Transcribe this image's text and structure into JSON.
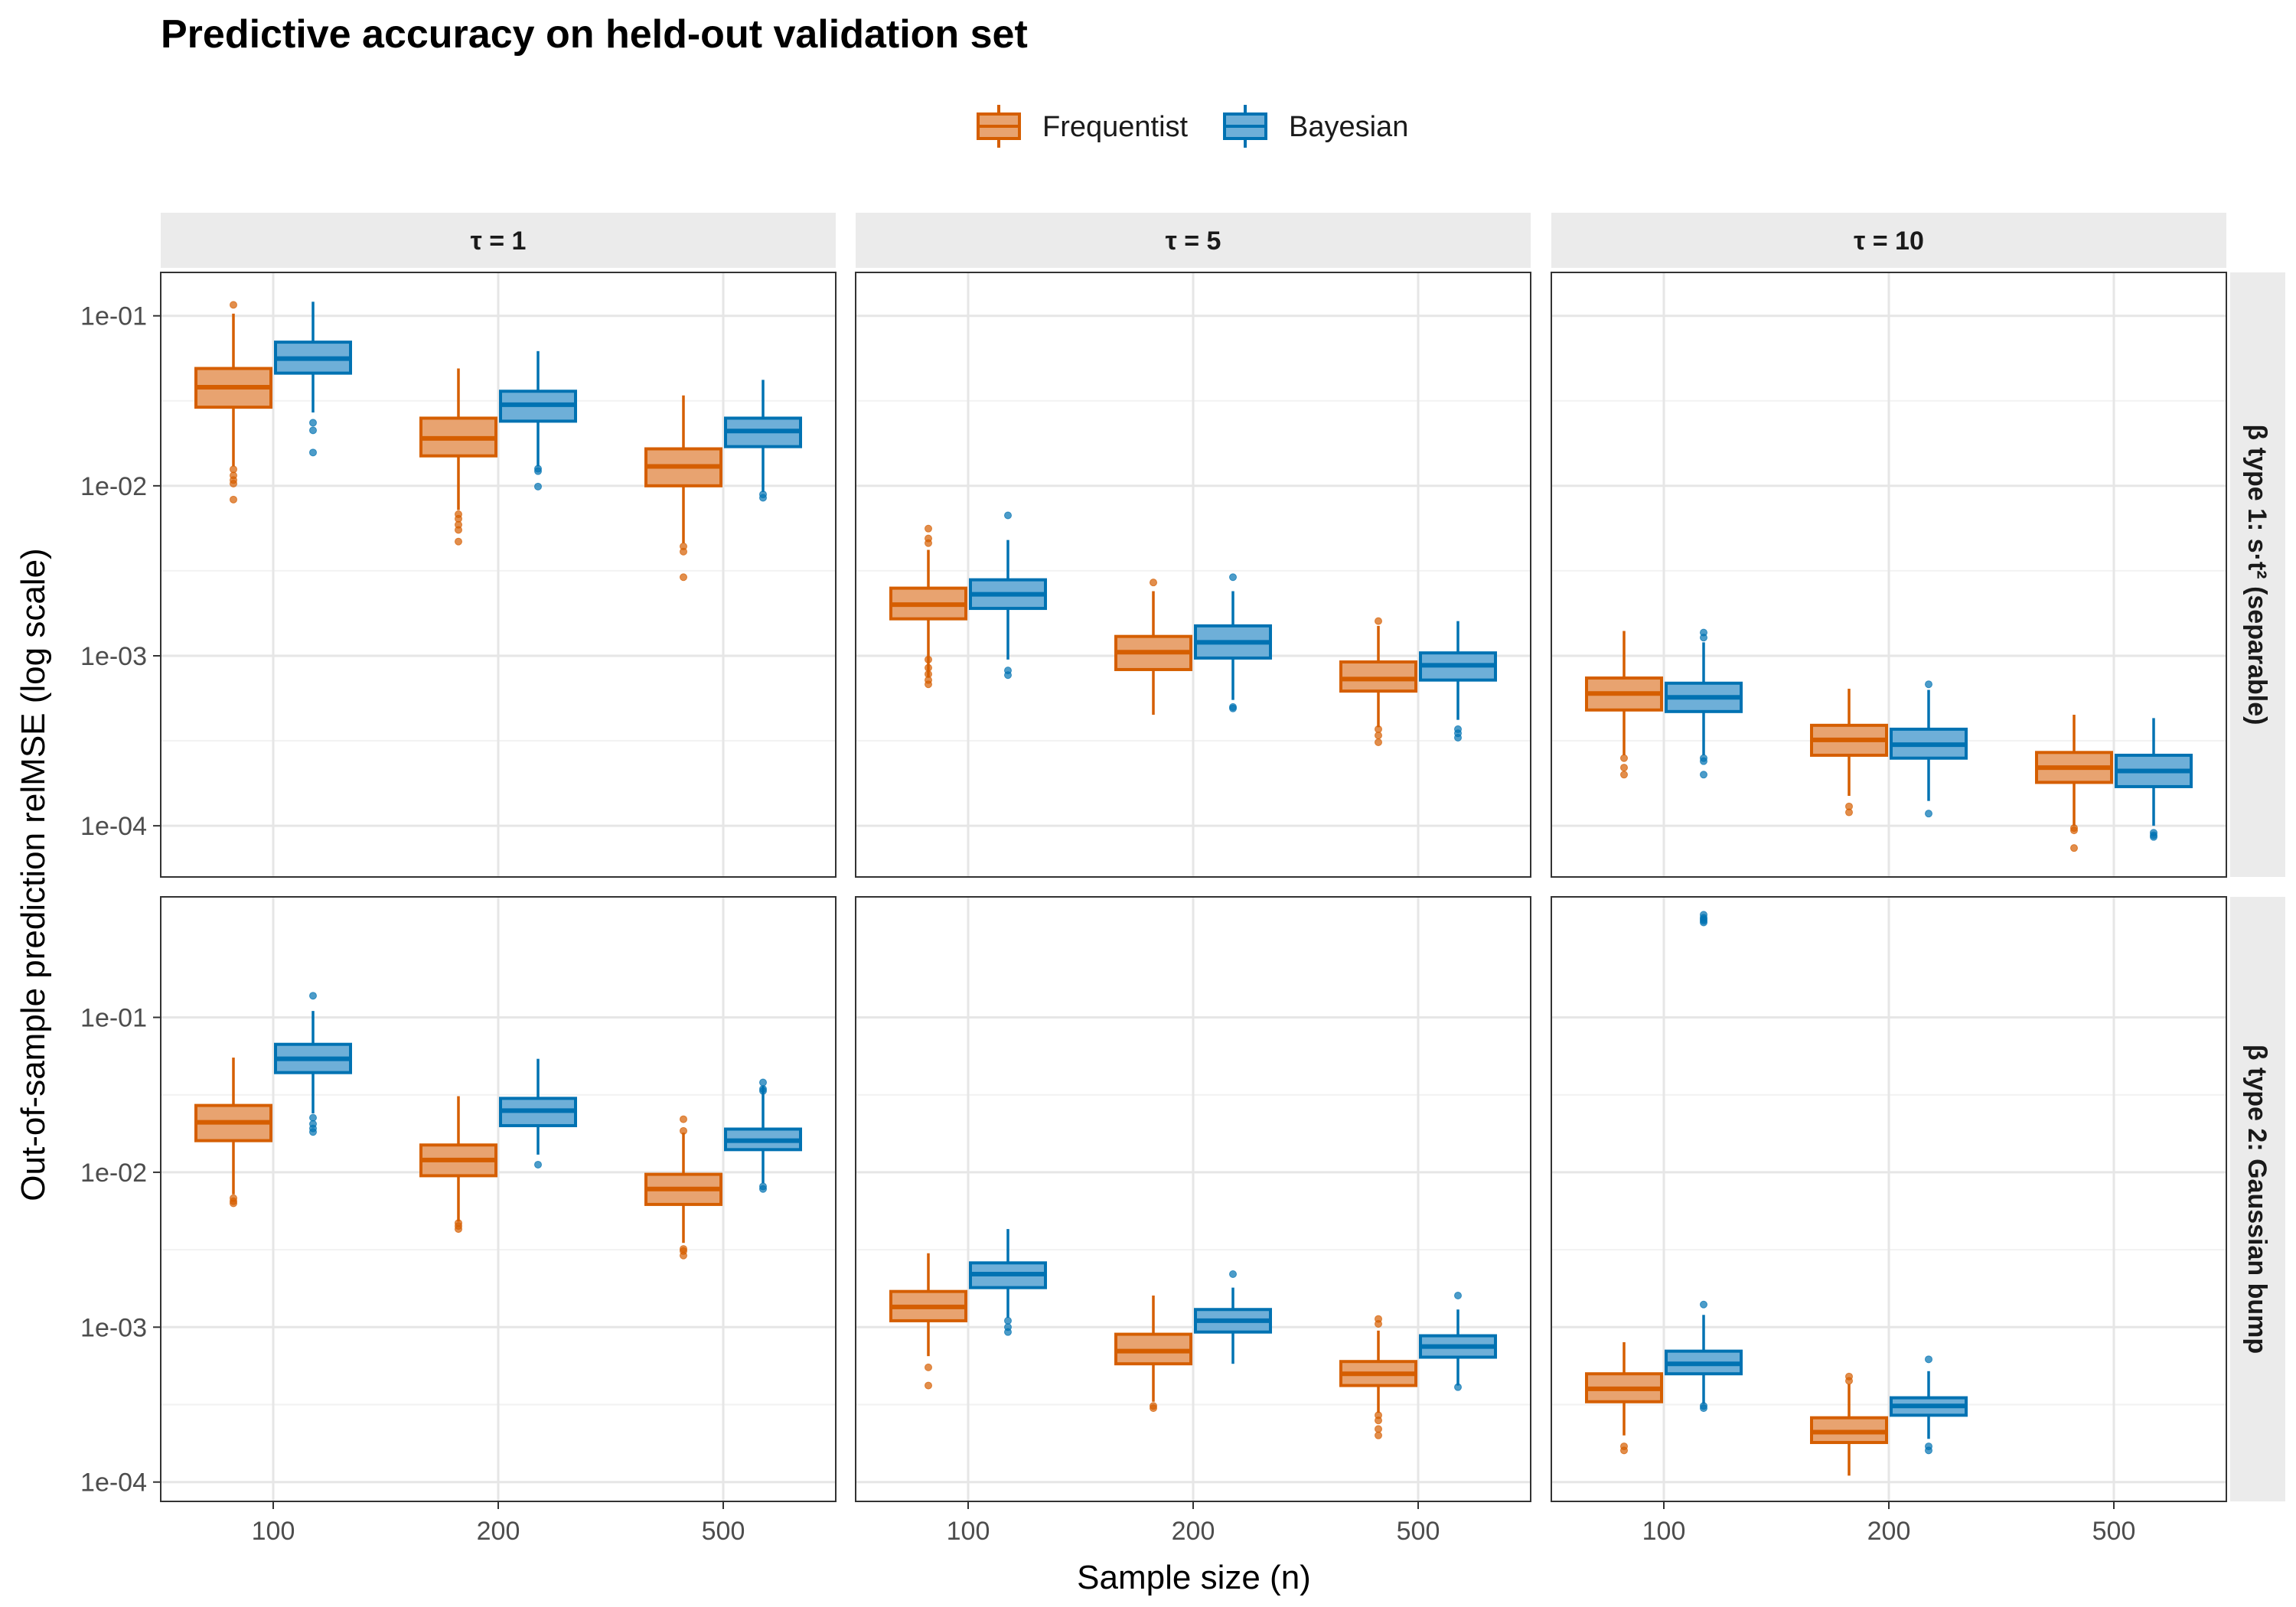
{
  "chart_data": {
    "type": "box",
    "title": "Predictive accuracy on held-out validation set",
    "xlabel": "Sample size (n)",
    "ylabel": "Out-of-sample prediction relMSE (log scale)",
    "y_scale": "log10",
    "legend_position": "top",
    "x_categories": [
      "100",
      "200",
      "500"
    ],
    "col_strips": [
      "τ = 1",
      "τ = 5",
      "τ = 10"
    ],
    "row_strips": [
      "β type 1: s·t² (separable)",
      "β type 2: Gaussian bump"
    ],
    "series": [
      {
        "name": "Frequentist",
        "color": "#D55E00",
        "fill": "#E8A370"
      },
      {
        "name": "Bayesian",
        "color": "#0072B2",
        "fill": "#6EAFD8"
      }
    ],
    "rows": [
      {
        "ylim": [
          5e-05,
          0.18
        ],
        "y_ticks": [
          {
            "value": 0.1,
            "label": "1e-01"
          },
          {
            "value": 0.01,
            "label": "1e-02"
          },
          {
            "value": 0.001,
            "label": "1e-03"
          },
          {
            "value": 0.0001,
            "label": "1e-04"
          }
        ],
        "panels": [
          {
            "boxes": [
              {
                "series": "Frequentist",
                "x": "100",
                "whisker_low": 0.013,
                "q1": 0.029,
                "median": 0.038,
                "q3": 0.049,
                "whisker_high": 0.103,
                "outliers": [
                  0.116,
                  0.0125,
                  0.0115,
                  0.0108,
                  0.0103,
                  0.0083
                ]
              },
              {
                "series": "Bayesian",
                "x": "100",
                "whisker_low": 0.027,
                "q1": 0.046,
                "median": 0.056,
                "q3": 0.07,
                "whisker_high": 0.121,
                "outliers": [
                  0.0235,
                  0.0212,
                  0.0157
                ]
              },
              {
                "series": "Frequentist",
                "x": "200",
                "whisker_low": 0.0072,
                "q1": 0.015,
                "median": 0.019,
                "q3": 0.025,
                "whisker_high": 0.049,
                "outliers": [
                  0.0068,
                  0.0064,
                  0.0059,
                  0.0055,
                  0.0047
                ]
              },
              {
                "series": "Bayesian",
                "x": "200",
                "whisker_low": 0.013,
                "q1": 0.024,
                "median": 0.03,
                "q3": 0.036,
                "whisker_high": 0.062,
                "outliers": [
                  0.0126,
                  0.0122,
                  0.0099
                ]
              },
              {
                "series": "Frequentist",
                "x": "500",
                "whisker_low": 0.0046,
                "q1": 0.01,
                "median": 0.013,
                "q3": 0.0165,
                "whisker_high": 0.034,
                "outliers": [
                  0.0044,
                  0.0041,
                  0.0029
                ]
              },
              {
                "series": "Bayesian",
                "x": "500",
                "whisker_low": 0.0092,
                "q1": 0.017,
                "median": 0.021,
                "q3": 0.025,
                "whisker_high": 0.042,
                "outliers": [
                  0.0089,
                  0.0085
                ]
              }
            ]
          },
          {
            "boxes": [
              {
                "series": "Frequentist",
                "x": "100",
                "whisker_low": 0.00075,
                "q1": 0.00165,
                "median": 0.002,
                "q3": 0.0025,
                "whisker_high": 0.0042,
                "outliers": [
                  0.0056,
                  0.0049,
                  0.0046,
                  0.00095,
                  0.00085,
                  0.00078,
                  0.00072,
                  0.00068
                ]
              },
              {
                "series": "Bayesian",
                "x": "100",
                "whisker_low": 0.00095,
                "q1": 0.0019,
                "median": 0.0023,
                "q3": 0.0028,
                "whisker_high": 0.0048,
                "outliers": [
                  0.0067,
                  0.00082,
                  0.00077
                ]
              },
              {
                "series": "Frequentist",
                "x": "200",
                "whisker_low": 0.00045,
                "q1": 0.00083,
                "median": 0.00105,
                "q3": 0.0013,
                "whisker_high": 0.0024,
                "outliers": [
                  0.0027
                ]
              },
              {
                "series": "Bayesian",
                "x": "200",
                "whisker_low": 0.00055,
                "q1": 0.00097,
                "median": 0.0012,
                "q3": 0.0015,
                "whisker_high": 0.0024,
                "outliers": [
                  0.0029,
                  0.0005,
                  0.00049
                ]
              },
              {
                "series": "Frequentist",
                "x": "500",
                "whisker_low": 0.00038,
                "q1": 0.00062,
                "median": 0.00073,
                "q3": 0.00092,
                "whisker_high": 0.0015,
                "outliers": [
                  0.0016,
                  0.00037,
                  0.00034,
                  0.00031
                ]
              },
              {
                "series": "Bayesian",
                "x": "500",
                "whisker_low": 0.00042,
                "q1": 0.00072,
                "median": 0.00088,
                "q3": 0.00104,
                "whisker_high": 0.0016,
                "outliers": [
                  0.00037,
                  0.00035,
                  0.00033
                ]
              }
            ]
          },
          {
            "boxes": [
              {
                "series": "Frequentist",
                "x": "100",
                "whisker_low": 0.00026,
                "q1": 0.00048,
                "median": 0.0006,
                "q3": 0.00074,
                "whisker_high": 0.0014,
                "outliers": [
                  0.00025,
                  0.00022,
                  0.0002
                ]
              },
              {
                "series": "Bayesian",
                "x": "100",
                "whisker_low": 0.00026,
                "q1": 0.00047,
                "median": 0.00057,
                "q3": 0.00069,
                "whisker_high": 0.0012,
                "outliers": [
                  0.00137,
                  0.00128,
                  0.00025,
                  0.00024,
                  0.0002
                ]
              },
              {
                "series": "Frequentist",
                "x": "200",
                "whisker_low": 0.00015,
                "q1": 0.00026,
                "median": 0.00032,
                "q3": 0.00039,
                "whisker_high": 0.00064,
                "outliers": [
                  0.00013,
                  0.00012
                ]
              },
              {
                "series": "Bayesian",
                "x": "200",
                "whisker_low": 0.00014,
                "q1": 0.00025,
                "median": 0.0003,
                "q3": 0.00037,
                "whisker_high": 0.00063,
                "outliers": [
                  0.00068,
                  0.000118
                ]
              },
              {
                "series": "Frequentist",
                "x": "500",
                "whisker_low": 0.0001,
                "q1": 0.00018,
                "median": 0.00022,
                "q3": 0.00027,
                "whisker_high": 0.00045,
                "outliers": [
                  9.7e-05,
                  9.4e-05,
                  7.4e-05
                ]
              },
              {
                "series": "Bayesian",
                "x": "500",
                "whisker_low": 0.0001,
                "q1": 0.00017,
                "median": 0.00021,
                "q3": 0.00026,
                "whisker_high": 0.00043,
                "outliers": [
                  9.1e-05,
                  8.8e-05,
                  8.6e-05
                ]
              }
            ]
          }
        ]
      },
      {
        "ylim": [
          7.5e-05,
          0.6
        ],
        "y_ticks": [
          {
            "value": 0.1,
            "label": "1e-01"
          },
          {
            "value": 0.01,
            "label": "1e-02"
          },
          {
            "value": 0.001,
            "label": "1e-03"
          },
          {
            "value": 0.0001,
            "label": "1e-04"
          }
        ],
        "panels": [
          {
            "boxes": [
              {
                "series": "Frequentist",
                "x": "100",
                "whisker_low": 0.0072,
                "q1": 0.016,
                "median": 0.021,
                "q3": 0.027,
                "whisker_high": 0.055,
                "outliers": [
                  0.0068,
                  0.0065,
                  0.0063
                ]
              },
              {
                "series": "Bayesian",
                "x": "100",
                "whisker_low": 0.024,
                "q1": 0.044,
                "median": 0.054,
                "q3": 0.067,
                "whisker_high": 0.11,
                "outliers": [
                  0.138,
                  0.0225,
                  0.0205,
                  0.0192,
                  0.0182
                ]
              },
              {
                "series": "Frequentist",
                "x": "200",
                "whisker_low": 0.0048,
                "q1": 0.0095,
                "median": 0.012,
                "q3": 0.015,
                "whisker_high": 0.031,
                "outliers": [
                  0.0047,
                  0.0045,
                  0.0043
                ]
              },
              {
                "series": "Bayesian",
                "x": "200",
                "whisker_low": 0.013,
                "q1": 0.02,
                "median": 0.025,
                "q3": 0.03,
                "whisker_high": 0.054,
                "outliers": [
                  0.0112
                ]
              },
              {
                "series": "Frequentist",
                "x": "500",
                "whisker_low": 0.0035,
                "q1": 0.0062,
                "median": 0.0078,
                "q3": 0.0097,
                "whisker_high": 0.018,
                "outliers": [
                  0.022,
                  0.0185,
                  0.0032,
                  0.0031,
                  0.0029
                ]
              },
              {
                "series": "Bayesian",
                "x": "500",
                "whisker_low": 0.0085,
                "q1": 0.014,
                "median": 0.016,
                "q3": 0.019,
                "whisker_high": 0.036,
                "outliers": [
                  0.038,
                  0.0345,
                  0.0335,
                  0.0081,
                  0.0078
                ]
              }
            ]
          },
          {
            "boxes": [
              {
                "series": "Frequentist",
                "x": "100",
                "whisker_low": 0.00065,
                "q1": 0.0011,
                "median": 0.00135,
                "q3": 0.0017,
                "whisker_high": 0.003,
                "outliers": [
                  0.00055,
                  0.00042
                ]
              },
              {
                "series": "Bayesian",
                "x": "100",
                "whisker_low": 0.00115,
                "q1": 0.0018,
                "median": 0.0022,
                "q3": 0.0026,
                "whisker_high": 0.0043,
                "outliers": [
                  0.0011,
                  0.001,
                  0.00093
                ]
              },
              {
                "series": "Frequentist",
                "x": "200",
                "whisker_low": 0.00033,
                "q1": 0.00058,
                "median": 0.0007,
                "q3": 0.0009,
                "whisker_high": 0.0016,
                "outliers": [
                  0.00031,
                  0.0003
                ]
              },
              {
                "series": "Bayesian",
                "x": "200",
                "whisker_low": 0.00058,
                "q1": 0.00093,
                "median": 0.0011,
                "q3": 0.0013,
                "whisker_high": 0.0018,
                "outliers": [
                  0.0022
                ]
              },
              {
                "series": "Frequentist",
                "x": "500",
                "whisker_low": 0.00028,
                "q1": 0.00042,
                "median": 0.0005,
                "q3": 0.0006,
                "whisker_high": 0.00095,
                "outliers": [
                  0.00113,
                  0.00105,
                  0.00027,
                  0.00025,
                  0.00022,
                  0.0002
                ]
              },
              {
                "series": "Bayesian",
                "x": "500",
                "whisker_low": 0.00042,
                "q1": 0.00064,
                "median": 0.00075,
                "q3": 0.00088,
                "whisker_high": 0.0013,
                "outliers": [
                  0.0016,
                  0.00041
                ]
              }
            ]
          },
          {
            "boxes": [
              {
                "series": "Frequentist",
                "x": "100",
                "whisker_low": 0.0002,
                "q1": 0.00033,
                "median": 0.0004,
                "q3": 0.0005,
                "whisker_high": 0.0008,
                "outliers": [
                  0.00017,
                  0.00016
                ]
              },
              {
                "series": "Bayesian",
                "x": "100",
                "whisker_low": 0.00032,
                "q1": 0.0005,
                "median": 0.00058,
                "q3": 0.0007,
                "whisker_high": 0.0012,
                "outliers": [
                  0.46,
                  0.44,
                  0.43,
                  0.42,
                  0.41,
                  0.0014,
                  0.00031,
                  0.0003
                ]
              },
              {
                "series": "Frequentist",
                "x": "200",
                "whisker_low": 0.00011,
                "q1": 0.00018,
                "median": 0.00021,
                "q3": 0.00026,
                "whisker_high": 0.00043,
                "outliers": [
                  0.00048,
                  0.00045
                ]
              },
              {
                "series": "Bayesian",
                "x": "200",
                "whisker_low": 0.00019,
                "q1": 0.00027,
                "median": 0.00031,
                "q3": 0.00035,
                "whisker_high": 0.00052,
                "outliers": [
                  0.00062,
                  0.00017,
                  0.00016
                ]
              }
            ]
          }
        ]
      }
    ]
  }
}
